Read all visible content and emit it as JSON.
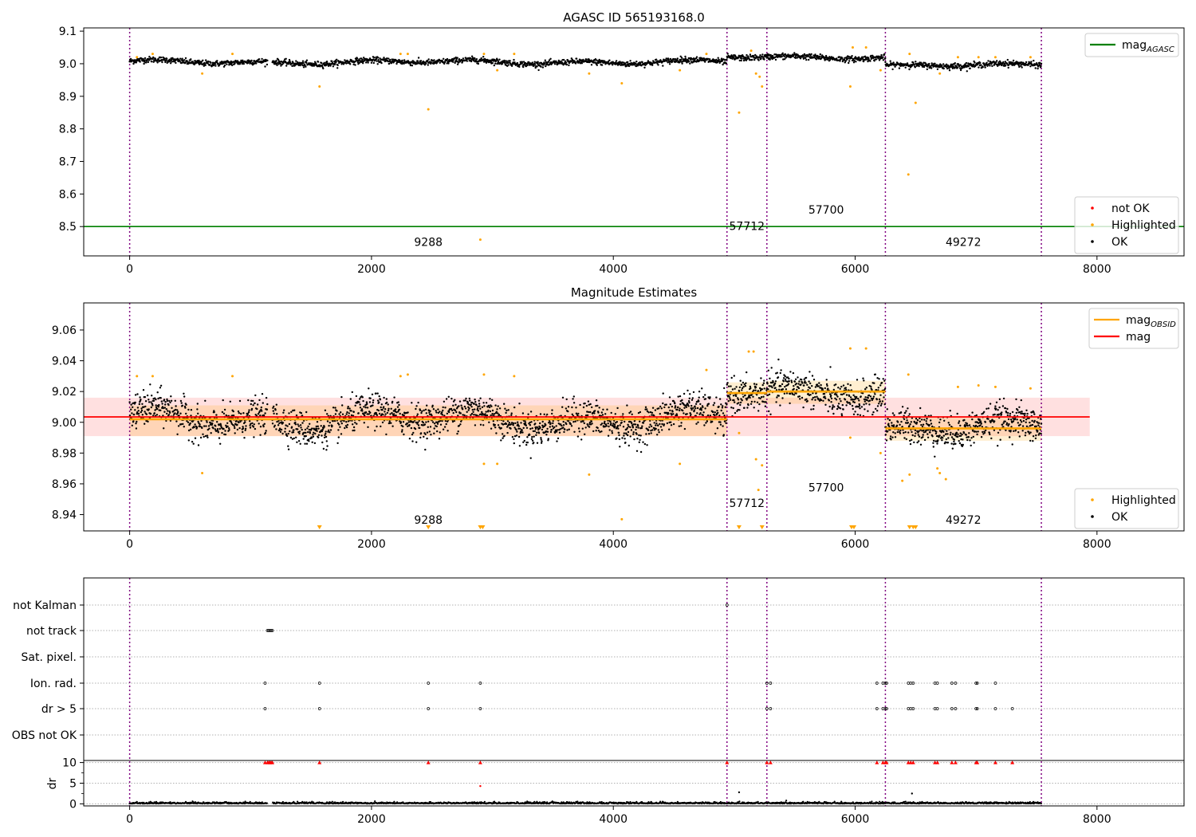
{
  "chart_data": [
    {
      "type": "scatter",
      "title": "AGASC ID 565193168.0",
      "xlabel": "",
      "ylabel": "",
      "xlim": [
        -380,
        8720
      ],
      "ylim": [
        8.41,
        9.11
      ],
      "xticks": [
        0,
        2000,
        4000,
        6000,
        8000
      ],
      "yticks": [
        8.5,
        8.6,
        8.7,
        8.8,
        8.9,
        9.0,
        9.1
      ],
      "ytick_labels": [
        "8.5",
        "8.6",
        "8.7",
        "8.8",
        "8.9",
        "9.0",
        "9.1"
      ],
      "grid": false,
      "lines": [
        {
          "name": "mag",
          "sub": "AGASC",
          "color": "#008000",
          "y": 8.5,
          "x": [
            -380,
            8720
          ]
        }
      ],
      "segments": [
        {
          "start": 0,
          "end": 4940,
          "baseline": 9.005,
          "amp": 0.008,
          "label": "9288",
          "label_x": 2470,
          "label_y": 8.44
        },
        {
          "start": 4940,
          "end": 5270,
          "baseline": 9.02,
          "amp": 0.008,
          "label": "57712",
          "label_x": 5105,
          "label_y": 8.49
        },
        {
          "start": 5270,
          "end": 6250,
          "baseline": 9.02,
          "amp": 0.006,
          "label": "57700",
          "label_x": 5760,
          "label_y": 8.54
        },
        {
          "start": 6250,
          "end": 7540,
          "baseline": 8.995,
          "amp": 0.006,
          "label": "49272",
          "label_x": 6895,
          "label_y": 8.44
        }
      ],
      "obs_boundaries": [
        0,
        4940,
        5270,
        6250,
        7540
      ],
      "gaps": [
        [
          1140,
          1180
        ]
      ],
      "highlighted": [
        [
          60,
          9.02
        ],
        [
          190,
          9.03
        ],
        [
          850,
          9.03
        ],
        [
          600,
          8.97
        ],
        [
          1570,
          8.93
        ],
        [
          2240,
          9.03
        ],
        [
          2300,
          9.03
        ],
        [
          2470,
          8.86
        ],
        [
          2900,
          8.46
        ],
        [
          2930,
          9.03
        ],
        [
          3040,
          8.98
        ],
        [
          3180,
          9.03
        ],
        [
          3800,
          8.97
        ],
        [
          4070,
          8.94
        ],
        [
          4550,
          8.98
        ],
        [
          4770,
          9.03
        ],
        [
          5040,
          8.85
        ],
        [
          5140,
          9.04
        ],
        [
          5180,
          8.97
        ],
        [
          5210,
          8.96
        ],
        [
          5230,
          8.93
        ],
        [
          5980,
          9.05
        ],
        [
          5960,
          8.93
        ],
        [
          6090,
          9.05
        ],
        [
          6210,
          8.98
        ],
        [
          6450,
          9.03
        ],
        [
          6500,
          8.88
        ],
        [
          6440,
          8.66
        ],
        [
          6700,
          8.97
        ],
        [
          6850,
          9.02
        ],
        [
          7020,
          9.02
        ],
        [
          7160,
          9.02
        ],
        [
          7450,
          9.02
        ]
      ],
      "legend_top": {
        "position": "upper right",
        "entries": [
          {
            "label": "mag",
            "sub": "AGASC",
            "color": "#008000",
            "kind": "line"
          }
        ]
      },
      "legend_bottom": {
        "position": "lower right",
        "entries": [
          {
            "label": "not OK",
            "color": "#ff0000",
            "kind": "dot"
          },
          {
            "label": "Highlighted",
            "color": "#ffa500",
            "kind": "dot"
          },
          {
            "label": "OK",
            "color": "#000000",
            "kind": "dot"
          }
        ]
      }
    },
    {
      "type": "scatter",
      "title": "Magnitude Estimates",
      "xlabel": "",
      "ylabel": "",
      "xlim": [
        -380,
        8720
      ],
      "ylim": [
        8.9294,
        9.0776
      ],
      "xticks": [
        0,
        2000,
        4000,
        6000,
        8000
      ],
      "yticks": [
        8.94,
        8.96,
        8.98,
        9.0,
        9.02,
        9.04,
        9.06
      ],
      "ytick_labels": [
        "8.94",
        "8.96",
        "8.98",
        "9.00",
        "9.02",
        "9.04",
        "9.06"
      ],
      "grid": false,
      "mag": {
        "y": 9.0035,
        "x": [
          -380,
          7940
        ],
        "band": [
          8.991,
          9.016
        ],
        "color": "#ff0000"
      },
      "segments": [
        {
          "start": 0,
          "end": 4940,
          "mag_obsid": 9.002,
          "band": [
            8.991,
            9.011
          ],
          "label": "9288",
          "label_x": 2470,
          "label_y": 8.934
        },
        {
          "start": 4940,
          "end": 5270,
          "mag_obsid": 9.019,
          "band": [
            9.012,
            9.026
          ],
          "label": "57712",
          "label_x": 5105,
          "label_y": 8.945
        },
        {
          "start": 5270,
          "end": 6250,
          "mag_obsid": 9.02,
          "band": [
            9.012,
            9.027
          ],
          "label": "57700",
          "label_x": 5760,
          "label_y": 8.955
        },
        {
          "start": 6250,
          "end": 7540,
          "mag_obsid": 8.996,
          "band": [
            8.988,
            9.003
          ],
          "label": "49272",
          "label_x": 6895,
          "label_y": 8.934
        }
      ],
      "obs_boundaries": [
        0,
        4940,
        5270,
        6250,
        7540
      ],
      "highlighted": [
        [
          60,
          9.03
        ],
        [
          190,
          9.03
        ],
        [
          850,
          9.03
        ],
        [
          600,
          8.967
        ],
        [
          2240,
          9.03
        ],
        [
          2300,
          9.031
        ],
        [
          2930,
          9.031
        ],
        [
          2930,
          8.973
        ],
        [
          3040,
          8.973
        ],
        [
          3180,
          9.03
        ],
        [
          3800,
          8.966
        ],
        [
          4070,
          8.937
        ],
        [
          4550,
          8.973
        ],
        [
          4770,
          9.034
        ],
        [
          5040,
          8.993
        ],
        [
          5120,
          9.046
        ],
        [
          5160,
          9.046
        ],
        [
          5180,
          8.976
        ],
        [
          5200,
          8.956
        ],
        [
          5230,
          8.972
        ],
        [
          5960,
          9.048
        ],
        [
          5960,
          8.99
        ],
        [
          6090,
          9.048
        ],
        [
          6210,
          8.98
        ],
        [
          6440,
          9.031
        ],
        [
          6390,
          8.962
        ],
        [
          6450,
          8.966
        ],
        [
          6680,
          8.97
        ],
        [
          6700,
          8.967
        ],
        [
          6750,
          8.963
        ],
        [
          6850,
          9.023
        ],
        [
          7020,
          9.024
        ],
        [
          7160,
          9.023
        ],
        [
          7450,
          9.022
        ]
      ],
      "clipped_low": [
        1570,
        2470,
        2900,
        2920,
        5040,
        5230,
        5970,
        5990,
        6450,
        6480,
        6500
      ],
      "legend_top": {
        "position": "upper right",
        "entries": [
          {
            "label": "mag",
            "sub": "OBSID",
            "color": "#ffa500",
            "kind": "line"
          },
          {
            "label": "mag",
            "sub": "",
            "color": "#ff0000",
            "kind": "line"
          }
        ]
      },
      "legend_bottom": {
        "position": "lower right",
        "entries": [
          {
            "label": "Highlighted",
            "color": "#ffa500",
            "kind": "dot"
          },
          {
            "label": "OK",
            "color": "#000000",
            "kind": "dot"
          }
        ]
      }
    },
    {
      "type": "scatter",
      "title": "",
      "xlabel": "",
      "ylabel": "",
      "xlim": [
        -380,
        8720
      ],
      "xticks": [
        0,
        2000,
        4000,
        6000,
        8000
      ],
      "grid": true,
      "flag_rows": [
        "not Kalman",
        "not track",
        "Sat. pixel.",
        "Ion. rad.",
        "dr > 5",
        "OBS not OK"
      ],
      "flags": {
        "not Kalman": [
          4940
        ],
        "not track": [
          1140,
          1150,
          1160,
          1170,
          1180
        ],
        "Sat. pixel.": [],
        "Ion. rad.": [
          1120,
          1570,
          2470,
          2900,
          5270,
          5300,
          6180,
          6230,
          6250,
          6260,
          6440,
          6460,
          6480,
          6660,
          6680,
          6800,
          6830,
          7000,
          7010,
          7160
        ],
        "dr > 5": [
          1120,
          1570,
          2470,
          2900,
          5270,
          5300,
          6180,
          6230,
          6250,
          6260,
          6440,
          6460,
          6480,
          6660,
          6680,
          6800,
          6830,
          7000,
          7010,
          7160,
          7300
        ],
        "OBS not OK": []
      },
      "dr": {
        "ylabel": "dr",
        "ylim": [
          -0.5,
          10.5
        ],
        "yticks": [
          0,
          5,
          10
        ],
        "ytick_labels": [
          "0",
          "5",
          "10"
        ],
        "clip": 10,
        "clipped_x": [
          1120,
          1140,
          1150,
          1160,
          1170,
          1180,
          1570,
          2470,
          2900,
          4940,
          5270,
          5300,
          6180,
          6230,
          6250,
          6260,
          6440,
          6460,
          6480,
          6660,
          6680,
          6800,
          6830,
          7000,
          7010,
          7160,
          7300
        ],
        "outliers": [
          [
            2900,
            4.3
          ],
          [
            5040,
            2.8
          ],
          [
            6470,
            2.5
          ]
        ]
      },
      "obs_boundaries": [
        0,
        4940,
        5270,
        6250,
        7540
      ]
    }
  ]
}
